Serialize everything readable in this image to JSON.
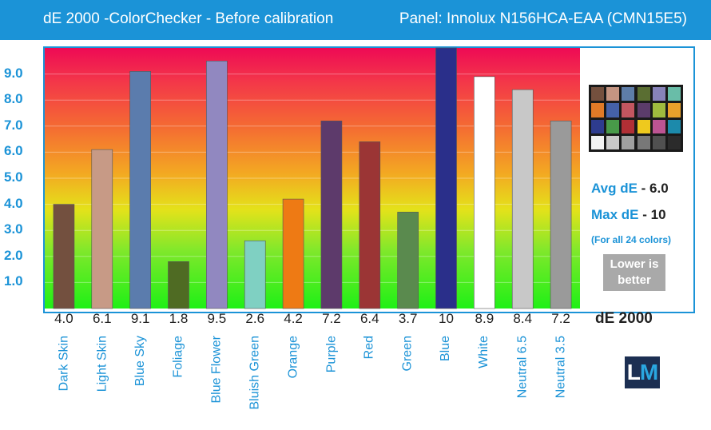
{
  "header": {
    "title": "dE 2000 -ColorChecker  - Before calibration",
    "panel": "Panel: Innolux N156HCA-EAA (CMN15E5)"
  },
  "side": {
    "avg_label": "Avg dE",
    "avg_value": "- 6.0",
    "max_label": "Max dE",
    "max_value": "- 10",
    "note": "(For all 24 colors)",
    "lower_line1": "Lower is",
    "lower_line2": "better",
    "de_label": "dE 2000",
    "logo_l": "L",
    "logo_m": "M"
  },
  "colors": {
    "accent": "#1b93d7",
    "logo_bg": "#1c2f52"
  },
  "chart_data": {
    "type": "bar",
    "title": "dE 2000 -ColorChecker  - Before calibration",
    "xlabel": "",
    "ylabel": "",
    "ylim": [
      0,
      10
    ],
    "grid": true,
    "yticks": [
      "1.0",
      "2.0",
      "3.0",
      "4.0",
      "5.0",
      "6.0",
      "7.0",
      "8.0",
      "9.0"
    ],
    "categories": [
      "Dark Skin",
      "Light Skin",
      "Blue Sky",
      "Foliage",
      "Blue Flower",
      "Bluish Green",
      "Orange",
      "Purple",
      "Red",
      "Green",
      "Blue",
      "White",
      "Neutral 6.5",
      "Neutral 3.5"
    ],
    "values": [
      4.0,
      6.1,
      9.1,
      1.8,
      9.5,
      2.6,
      4.2,
      7.2,
      6.4,
      3.7,
      10,
      8.9,
      8.4,
      7.2
    ],
    "value_labels": [
      "4.0",
      "6.1",
      "9.1",
      "1.8",
      "9.5",
      "2.6",
      "4.2",
      "7.2",
      "6.4",
      "3.7",
      "10",
      "8.9",
      "8.4",
      "7.2"
    ],
    "bar_colors": [
      "#73503f",
      "#c79a86",
      "#5b7cad",
      "#4f6b23",
      "#9188c0",
      "#7fd0c2",
      "#ee7a14",
      "#5d3a6b",
      "#9b3535",
      "#5a8a4e",
      "#2a2f8a",
      "#ffffff",
      "#c8c8c8",
      "#9a9a9a"
    ]
  },
  "swatch_colors": [
    "#74503e",
    "#c49582",
    "#5e7da8",
    "#5a6e32",
    "#8883ba",
    "#69bda8",
    "#e07a27",
    "#4561a8",
    "#c25660",
    "#5b3c6a",
    "#9fbb3e",
    "#e9a12b",
    "#2e3c8e",
    "#489a49",
    "#b12f35",
    "#eec91e",
    "#bd5493",
    "#1c8aab",
    "#f2f2f2",
    "#c9c9c9",
    "#a0a0a0",
    "#787878",
    "#505050",
    "#2b2b2b"
  ]
}
